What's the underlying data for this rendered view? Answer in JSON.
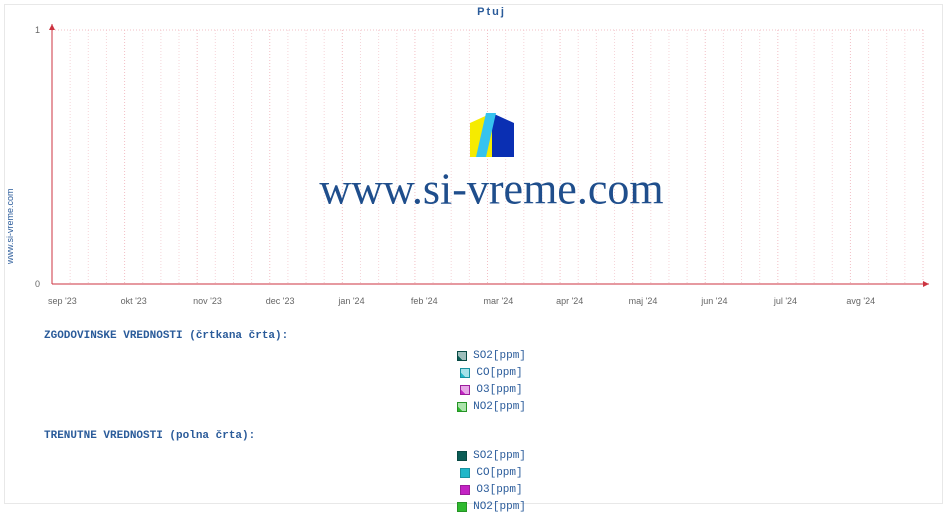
{
  "sidebar_label": "www.si-vreme.com",
  "chart": {
    "type": "line",
    "title": "Ptuj",
    "title_fontsize": 11,
    "title_color": "#2a5b9a",
    "background_color": "#ffffff",
    "axis_color": "#cc3340",
    "grid_color_major": "#f2bfc5",
    "grid_color_minor": "#f5d5d9",
    "ylim": [
      0,
      1
    ],
    "yticks": [
      0,
      1
    ],
    "x_labels": [
      "sep '23",
      "okt '23",
      "nov '23",
      "dec '23",
      "jan '24",
      "feb '24",
      "mar '24",
      "apr '24",
      "maj '24",
      "jun '24",
      "jul '24",
      "avg '24"
    ],
    "x_start": "sep '23",
    "x_end": "avg '24",
    "subgrid_per_month": 4,
    "label_fontsize": 9,
    "label_color": "#666666",
    "arrow_on_axes": true,
    "watermark_text": "www.si-vreme.com",
    "watermark_text_color": "#1f4e8c",
    "watermark_text_fontsize": 44,
    "watermark_logo_colors": {
      "left": "#f6eb00",
      "stripe": "#36c3ef",
      "right": "#0a2fb3"
    },
    "series": []
  },
  "legend": {
    "historical": {
      "title": "ZGODOVINSKE VREDNOSTI (črtkana črta):",
      "style": "dashed",
      "items": [
        {
          "label": "SO2[ppm]",
          "color": "#0b5d56"
        },
        {
          "label": "CO[ppm]",
          "color": "#1fb7c9"
        },
        {
          "label": "O3[ppm]",
          "color": "#c423c4"
        },
        {
          "label": "NO2[ppm]",
          "color": "#2fb92f"
        }
      ]
    },
    "current": {
      "title": "TRENUTNE VREDNOSTI (polna črta):",
      "style": "solid",
      "items": [
        {
          "label": "SO2[ppm]",
          "color": "#0b5d56"
        },
        {
          "label": "CO[ppm]",
          "color": "#1fb7c9"
        },
        {
          "label": "O3[ppm]",
          "color": "#c423c4"
        },
        {
          "label": "NO2[ppm]",
          "color": "#2fb92f"
        }
      ]
    }
  }
}
